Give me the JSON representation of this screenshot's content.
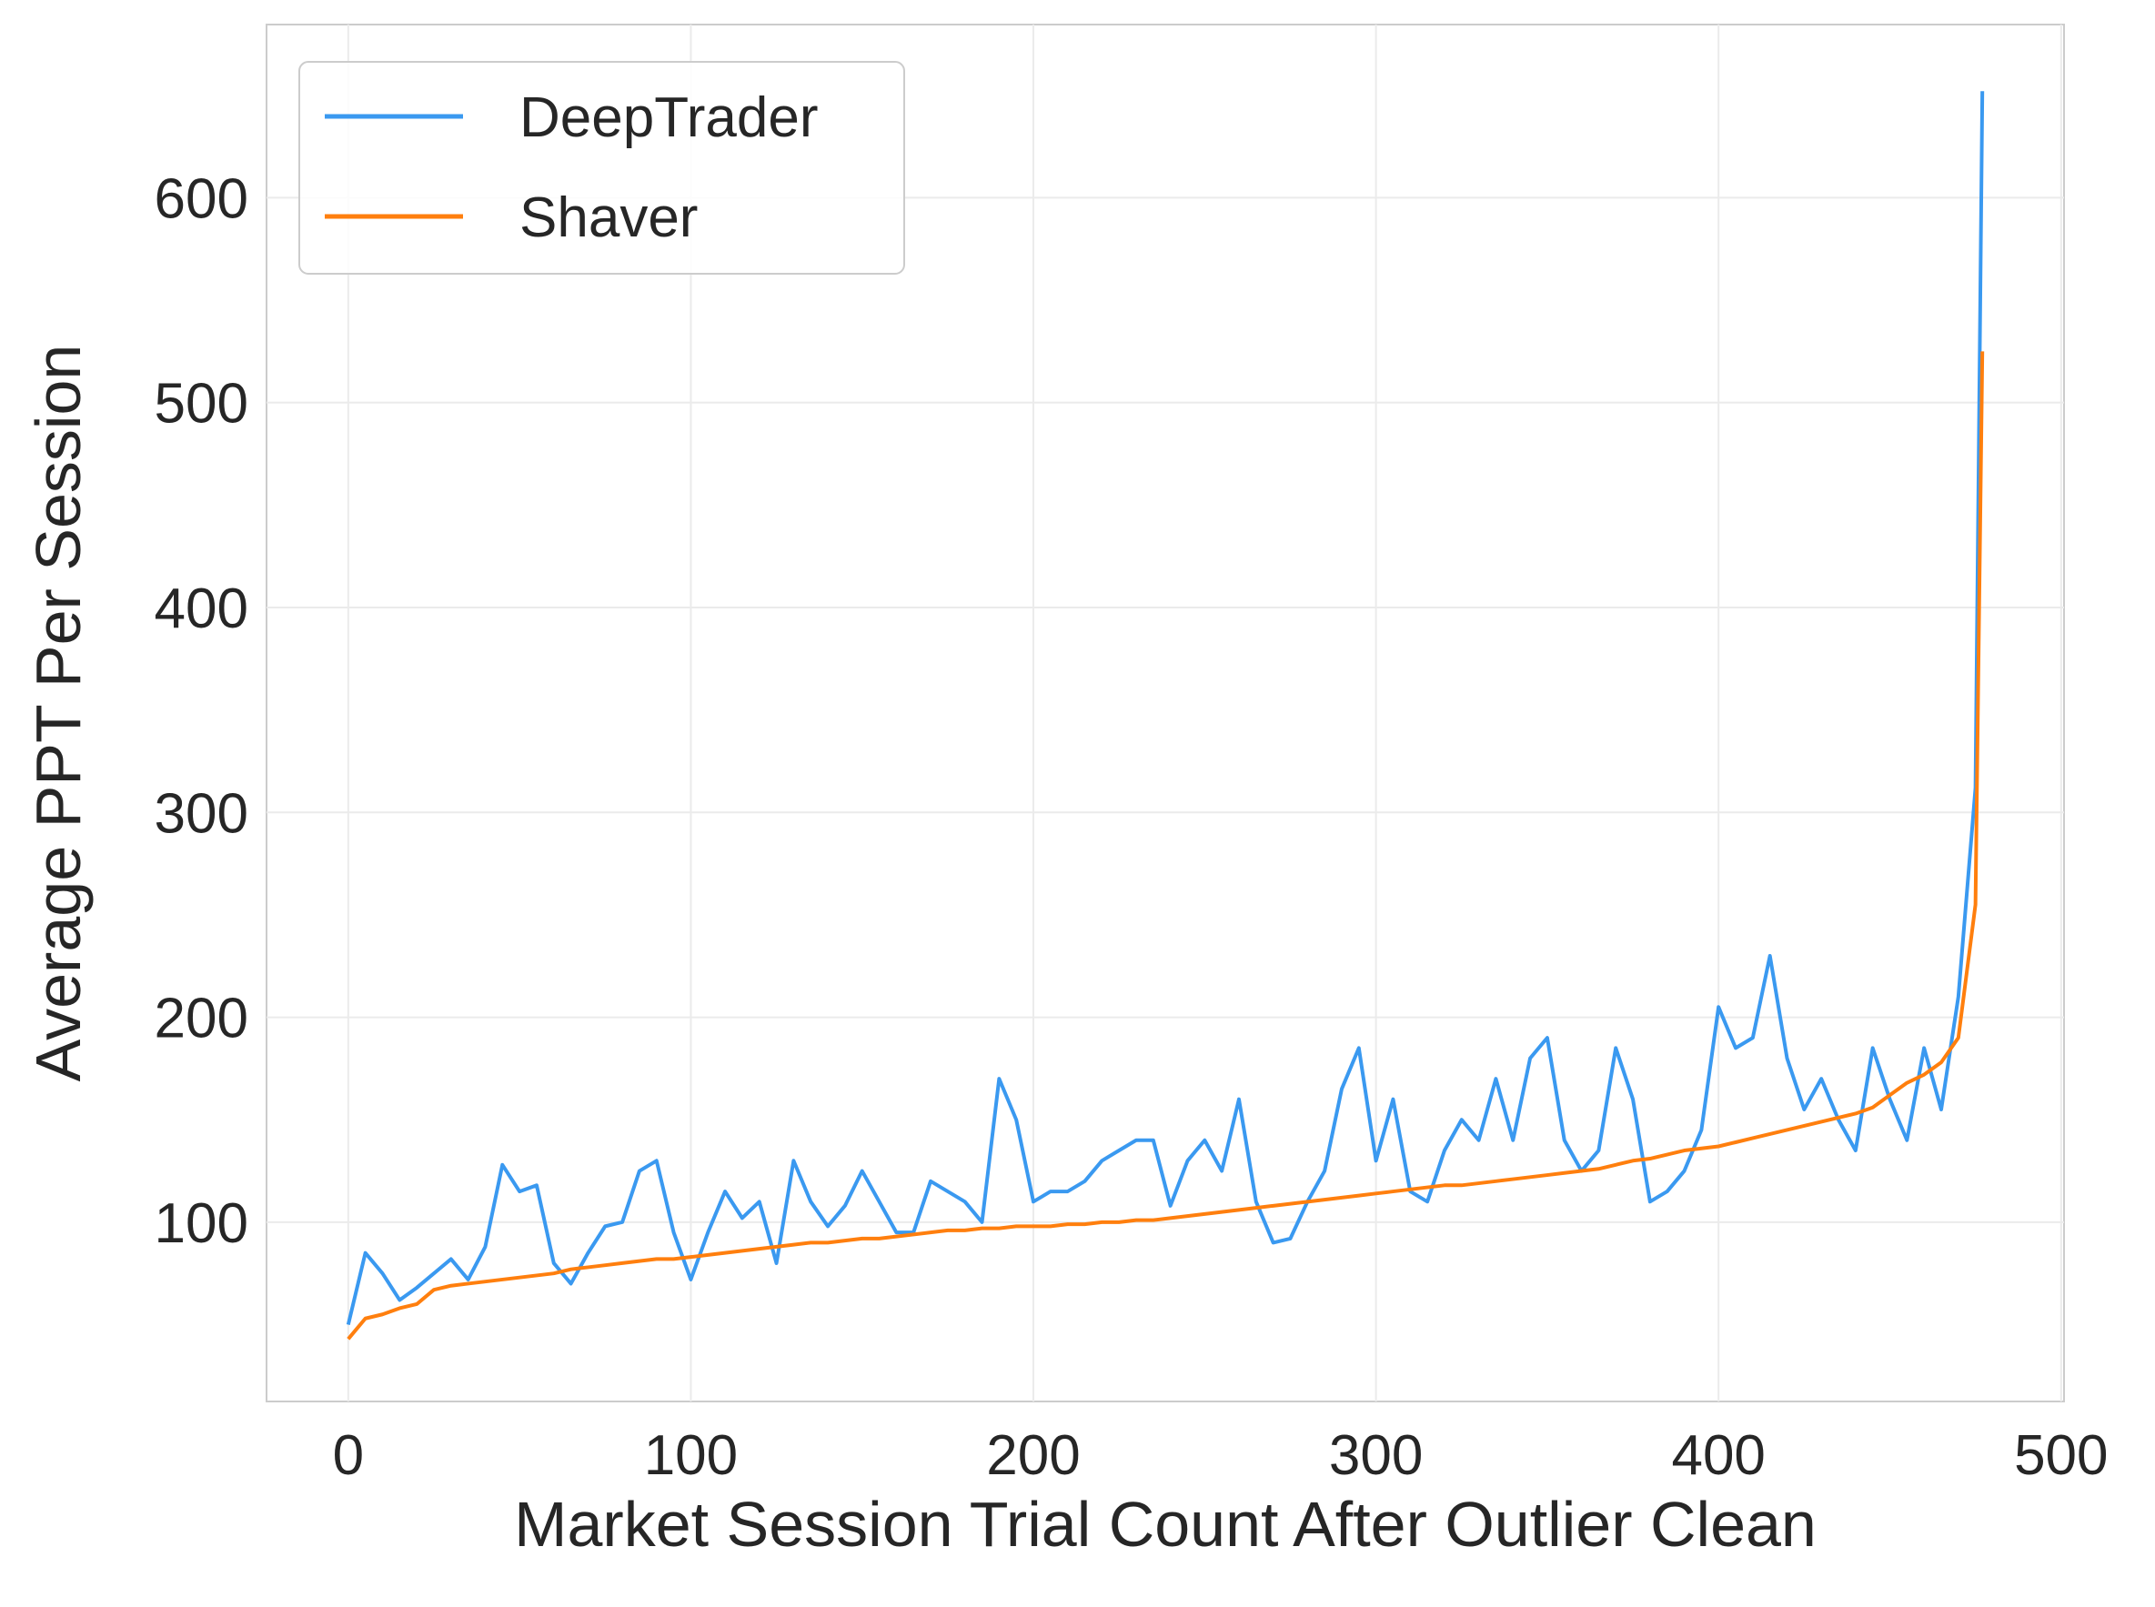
{
  "chart_data": {
    "type": "line",
    "xlabel": "Market Session Trial Count After Outlier Clean",
    "ylabel": "Average PPT Per Session",
    "x": [
      0,
      5,
      10,
      15,
      20,
      25,
      30,
      35,
      40,
      45,
      50,
      55,
      60,
      65,
      70,
      75,
      80,
      85,
      90,
      95,
      100,
      105,
      110,
      115,
      120,
      125,
      130,
      135,
      140,
      145,
      150,
      155,
      160,
      165,
      170,
      175,
      180,
      185,
      190,
      195,
      200,
      205,
      210,
      215,
      220,
      225,
      230,
      235,
      240,
      245,
      250,
      255,
      260,
      265,
      270,
      275,
      280,
      285,
      290,
      295,
      300,
      305,
      310,
      315,
      320,
      325,
      330,
      335,
      340,
      345,
      350,
      355,
      360,
      365,
      370,
      375,
      380,
      385,
      390,
      395,
      400,
      405,
      410,
      415,
      420,
      425,
      430,
      435,
      440,
      445,
      450,
      455,
      460,
      465,
      470,
      475,
      477
    ],
    "series": [
      {
        "name": "DeepTrader",
        "color": "#3a99f0",
        "values": [
          50,
          85,
          75,
          62,
          68,
          75,
          82,
          72,
          88,
          128,
          115,
          118,
          80,
          70,
          85,
          98,
          100,
          125,
          130,
          95,
          72,
          95,
          115,
          102,
          110,
          80,
          130,
          110,
          98,
          108,
          125,
          110,
          95,
          95,
          120,
          115,
          110,
          100,
          170,
          150,
          110,
          115,
          115,
          120,
          130,
          135,
          140,
          140,
          108,
          130,
          140,
          125,
          160,
          110,
          90,
          92,
          110,
          125,
          165,
          185,
          130,
          160,
          115,
          110,
          135,
          150,
          140,
          170,
          140,
          180,
          190,
          140,
          125,
          135,
          185,
          160,
          110,
          115,
          125,
          145,
          205,
          185,
          190,
          230,
          180,
          155,
          170,
          150,
          135,
          185,
          160,
          140,
          185,
          155,
          210,
          312,
          652
        ]
      },
      {
        "name": "Shaver",
        "color": "#ff7f0e",
        "values": [
          43,
          53,
          55,
          58,
          60,
          67,
          69,
          70,
          71,
          72,
          73,
          74,
          75,
          77,
          78,
          79,
          80,
          81,
          82,
          82,
          83,
          84,
          85,
          86,
          87,
          88,
          89,
          90,
          90,
          91,
          92,
          92,
          93,
          94,
          95,
          96,
          96,
          97,
          97,
          98,
          98,
          98,
          99,
          99,
          100,
          100,
          101,
          101,
          102,
          103,
          104,
          105,
          106,
          107,
          108,
          109,
          110,
          111,
          112,
          113,
          114,
          115,
          116,
          117,
          118,
          118,
          119,
          120,
          121,
          122,
          123,
          124,
          125,
          126,
          128,
          130,
          131,
          133,
          135,
          136,
          137,
          139,
          141,
          143,
          145,
          147,
          149,
          151,
          153,
          156,
          162,
          168,
          172,
          178,
          190,
          255,
          525
        ]
      }
    ],
    "xlim": [
      -23.85,
      500.85
    ],
    "ylim": [
      12.5,
      684.5
    ],
    "xticks": [
      0,
      100,
      200,
      300,
      400,
      500
    ],
    "yticks": [
      100,
      200,
      300,
      400,
      500,
      600
    ],
    "grid": true,
    "legend": "upper-left"
  }
}
